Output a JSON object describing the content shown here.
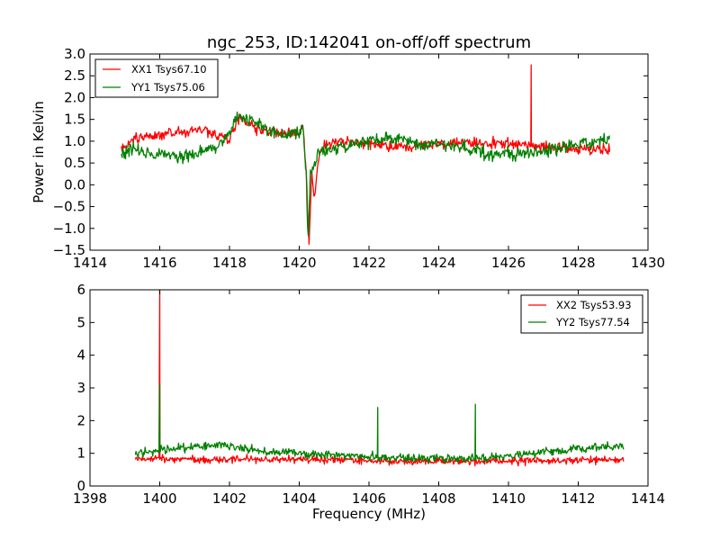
{
  "chart_data": [
    {
      "type": "line",
      "title": "ngc_253, ID:142041 on-off/off spectrum",
      "xlabel": "",
      "ylabel": "Power in Kelvin",
      "xlim": [
        1414,
        1430
      ],
      "ylim": [
        -1.5,
        3.0
      ],
      "xticks": [
        "1414",
        "1416",
        "1418",
        "1420",
        "1422",
        "1424",
        "1426",
        "1428",
        "1430"
      ],
      "xtick_values": [
        1414,
        1416,
        1418,
        1420,
        1422,
        1424,
        1426,
        1428,
        1430
      ],
      "yticks": [
        "3.0",
        "2.5",
        "2.0",
        "1.5",
        "1.0",
        "0.5",
        "0.0",
        "−0.5",
        "−1.0",
        "−1.5"
      ],
      "ytick_values": [
        3.0,
        2.5,
        2.0,
        1.5,
        1.0,
        0.5,
        0.0,
        -0.5,
        -1.0,
        -1.5
      ],
      "grid": false,
      "legend_position": "top-left",
      "series": [
        {
          "name": "XX1 Tsys67.10",
          "color": "#ff0000",
          "x_range": [
            1414.9,
            1428.9
          ],
          "noise": 0.08,
          "seed": 11,
          "profile": [
            [
              1414.9,
              0.85
            ],
            [
              1415.3,
              1.05
            ],
            [
              1416.5,
              1.2
            ],
            [
              1417.2,
              1.25
            ],
            [
              1418.0,
              1.05
            ],
            [
              1418.3,
              1.55
            ],
            [
              1418.6,
              1.35
            ],
            [
              1419.5,
              1.15
            ],
            [
              1420.0,
              1.2
            ],
            [
              1420.1,
              1.35
            ],
            [
              1420.2,
              0.3
            ],
            [
              1420.28,
              -1.45
            ],
            [
              1420.36,
              0.3
            ],
            [
              1420.42,
              -0.3
            ],
            [
              1420.6,
              0.85
            ],
            [
              1421.0,
              1.0
            ],
            [
              1422.0,
              0.95
            ],
            [
              1423.0,
              0.85
            ],
            [
              1424.0,
              0.95
            ],
            [
              1426.0,
              0.95
            ],
            [
              1428.0,
              0.8
            ],
            [
              1428.9,
              0.8
            ]
          ],
          "spikes": [
            [
              1426.65,
              2.75
            ]
          ]
        },
        {
          "name": "YY1 Tsys75.06",
          "color": "#008000",
          "x_range": [
            1414.9,
            1428.9
          ],
          "noise": 0.09,
          "seed": 23,
          "profile": [
            [
              1414.9,
              0.7
            ],
            [
              1415.2,
              0.85
            ],
            [
              1416.0,
              0.7
            ],
            [
              1416.6,
              0.65
            ],
            [
              1417.5,
              0.85
            ],
            [
              1418.0,
              1.1
            ],
            [
              1418.2,
              1.6
            ],
            [
              1418.6,
              1.45
            ],
            [
              1419.5,
              1.15
            ],
            [
              1420.0,
              1.2
            ],
            [
              1420.1,
              1.3
            ],
            [
              1420.2,
              0.2
            ],
            [
              1420.25,
              -1.3
            ],
            [
              1420.32,
              0.2
            ],
            [
              1420.4,
              0.4
            ],
            [
              1420.6,
              0.8
            ],
            [
              1421.5,
              0.9
            ],
            [
              1422.5,
              1.1
            ],
            [
              1423.5,
              0.95
            ],
            [
              1424.5,
              0.9
            ],
            [
              1425.5,
              0.7
            ],
            [
              1426.5,
              0.7
            ],
            [
              1427.5,
              0.85
            ],
            [
              1428.9,
              1.05
            ]
          ],
          "spikes": []
        }
      ]
    },
    {
      "type": "line",
      "title": "",
      "xlabel": "Frequency (MHz)",
      "ylabel": "",
      "xlim": [
        1398,
        1414
      ],
      "ylim": [
        0,
        6
      ],
      "xticks": [
        "1398",
        "1400",
        "1402",
        "1404",
        "1406",
        "1408",
        "1410",
        "1412",
        "1414"
      ],
      "xtick_values": [
        1398,
        1400,
        1402,
        1404,
        1406,
        1408,
        1410,
        1412,
        1414
      ],
      "yticks": [
        "6",
        "5",
        "4",
        "3",
        "2",
        "1",
        "0"
      ],
      "ytick_values": [
        6,
        5,
        4,
        3,
        2,
        1,
        0
      ],
      "grid": false,
      "legend_position": "top-right",
      "series": [
        {
          "name": "XX2 Tsys53.93",
          "color": "#ff0000",
          "x_range": [
            1399.3,
            1413.3
          ],
          "noise": 0.07,
          "seed": 37,
          "profile": [
            [
              1399.3,
              0.85
            ],
            [
              1401.0,
              0.8
            ],
            [
              1404.0,
              0.82
            ],
            [
              1407.0,
              0.75
            ],
            [
              1410.0,
              0.75
            ],
            [
              1413.3,
              0.8
            ]
          ],
          "spikes": [
            [
              1400.0,
              6.0
            ]
          ]
        },
        {
          "name": "YY2 Tsys77.54",
          "color": "#008000",
          "x_range": [
            1399.3,
            1413.3
          ],
          "noise": 0.08,
          "seed": 53,
          "profile": [
            [
              1399.3,
              1.0
            ],
            [
              1400.5,
              1.15
            ],
            [
              1401.8,
              1.25
            ],
            [
              1403.0,
              1.05
            ],
            [
              1405.0,
              0.95
            ],
            [
              1407.0,
              0.85
            ],
            [
              1409.5,
              0.85
            ],
            [
              1411.0,
              1.05
            ],
            [
              1413.3,
              1.25
            ]
          ],
          "spikes": [
            [
              1400.0,
              3.1
            ],
            [
              1406.25,
              2.4
            ],
            [
              1409.05,
              2.5
            ]
          ]
        }
      ]
    }
  ]
}
